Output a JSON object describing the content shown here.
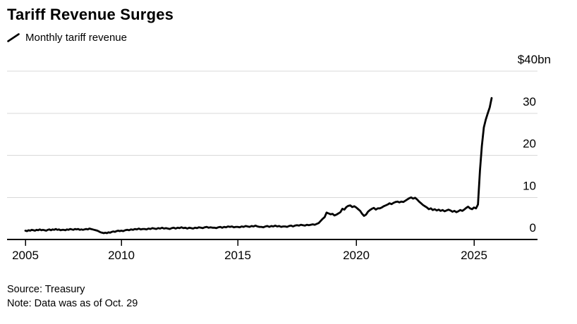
{
  "header": {
    "title": "Tariff Revenue Surges"
  },
  "legend": {
    "series": [
      {
        "label": "Monthly tariff revenue",
        "color": "#000000",
        "marker": "slash-line"
      }
    ]
  },
  "footer": {
    "source": "Source: Treasury",
    "note": "Note: Data was as of Oct. 29"
  },
  "colors": {
    "background": "#ffffff",
    "line": "#000000",
    "grid": "#d8d8d8",
    "axis": "#000000",
    "text": "#000000"
  },
  "chart_data": {
    "type": "line",
    "title": "Tariff Revenue Surges",
    "legend_entries": [
      "Monthly tariff revenue"
    ],
    "unit": "$bn",
    "grid": "horizontal",
    "legend_position": "top-left",
    "x_start": "2005-01",
    "x_end": "2025-10",
    "x_frequency": "monthly",
    "x_tick_labels": [
      "2005",
      "2010",
      "2015",
      "2020",
      "2025"
    ],
    "y_ticks": [
      0,
      10,
      20,
      30,
      40
    ],
    "y_tick_labels": [
      "0",
      "10",
      "20",
      "30",
      "$40bn"
    ],
    "ylim": [
      0,
      42
    ],
    "values": [
      2.1,
      2.0,
      2.2,
      2.1,
      2.3,
      2.2,
      2.1,
      2.3,
      2.2,
      2.4,
      2.2,
      2.3,
      2.2,
      2.1,
      2.3,
      2.4,
      2.2,
      2.4,
      2.3,
      2.5,
      2.3,
      2.4,
      2.2,
      2.3,
      2.3,
      2.2,
      2.4,
      2.3,
      2.5,
      2.4,
      2.3,
      2.5,
      2.4,
      2.5,
      2.3,
      2.4,
      2.3,
      2.4,
      2.5,
      2.4,
      2.6,
      2.5,
      2.4,
      2.3,
      2.2,
      2.1,
      1.9,
      1.7,
      1.6,
      1.5,
      1.6,
      1.5,
      1.7,
      1.6,
      1.8,
      1.9,
      1.8,
      2.0,
      2.1,
      2.0,
      2.1,
      2.0,
      2.2,
      2.3,
      2.2,
      2.4,
      2.3,
      2.5,
      2.4,
      2.6,
      2.4,
      2.5,
      2.5,
      2.4,
      2.6,
      2.5,
      2.7,
      2.6,
      2.5,
      2.7,
      2.6,
      2.8,
      2.6,
      2.7,
      2.6,
      2.5,
      2.7,
      2.8,
      2.6,
      2.8,
      2.7,
      2.9,
      2.7,
      2.8,
      2.6,
      2.8,
      2.7,
      2.6,
      2.8,
      2.7,
      2.9,
      2.8,
      2.7,
      2.9,
      3.0,
      2.8,
      2.9,
      2.8,
      2.8,
      2.7,
      2.9,
      3.0,
      2.8,
      3.0,
      2.9,
      3.1,
      3.0,
      3.1,
      2.9,
      3.0,
      3.0,
      2.9,
      3.1,
      3.0,
      3.2,
      3.1,
      3.0,
      3.2,
      3.1,
      3.3,
      3.1,
      3.0,
      3.0,
      2.9,
      3.1,
      3.2,
      3.0,
      3.2,
      3.1,
      3.3,
      3.1,
      3.2,
      3.0,
      3.1,
      3.1,
      3.0,
      3.2,
      3.3,
      3.1,
      3.3,
      3.4,
      3.3,
      3.5,
      3.4,
      3.3,
      3.5,
      3.4,
      3.5,
      3.6,
      3.5,
      3.7,
      3.9,
      4.4,
      4.9,
      5.3,
      6.4,
      6.2,
      6.0,
      6.1,
      5.7,
      5.9,
      6.2,
      6.5,
      7.3,
      7.1,
      7.7,
      8.0,
      8.1,
      7.7,
      7.9,
      7.6,
      7.2,
      6.8,
      6.1,
      5.6,
      5.9,
      6.6,
      7.0,
      7.3,
      7.5,
      7.1,
      7.4,
      7.4,
      7.6,
      7.9,
      8.1,
      8.3,
      8.6,
      8.4,
      8.7,
      8.9,
      9.0,
      8.8,
      9.0,
      8.9,
      9.2,
      9.5,
      9.8,
      10.0,
      9.7,
      9.9,
      9.5,
      9.0,
      8.6,
      8.2,
      7.9,
      7.6,
      7.2,
      7.4,
      7.0,
      7.2,
      6.9,
      7.1,
      6.8,
      7.0,
      6.7,
      6.9,
      7.1,
      6.9,
      6.6,
      6.8,
      6.5,
      6.7,
      7.0,
      6.8,
      7.1,
      7.5,
      7.8,
      7.4,
      7.2,
      7.6,
      7.4,
      8.3,
      16.3,
      22.2,
      26.6,
      28.5,
      30.0,
      31.4,
      33.6
    ]
  }
}
